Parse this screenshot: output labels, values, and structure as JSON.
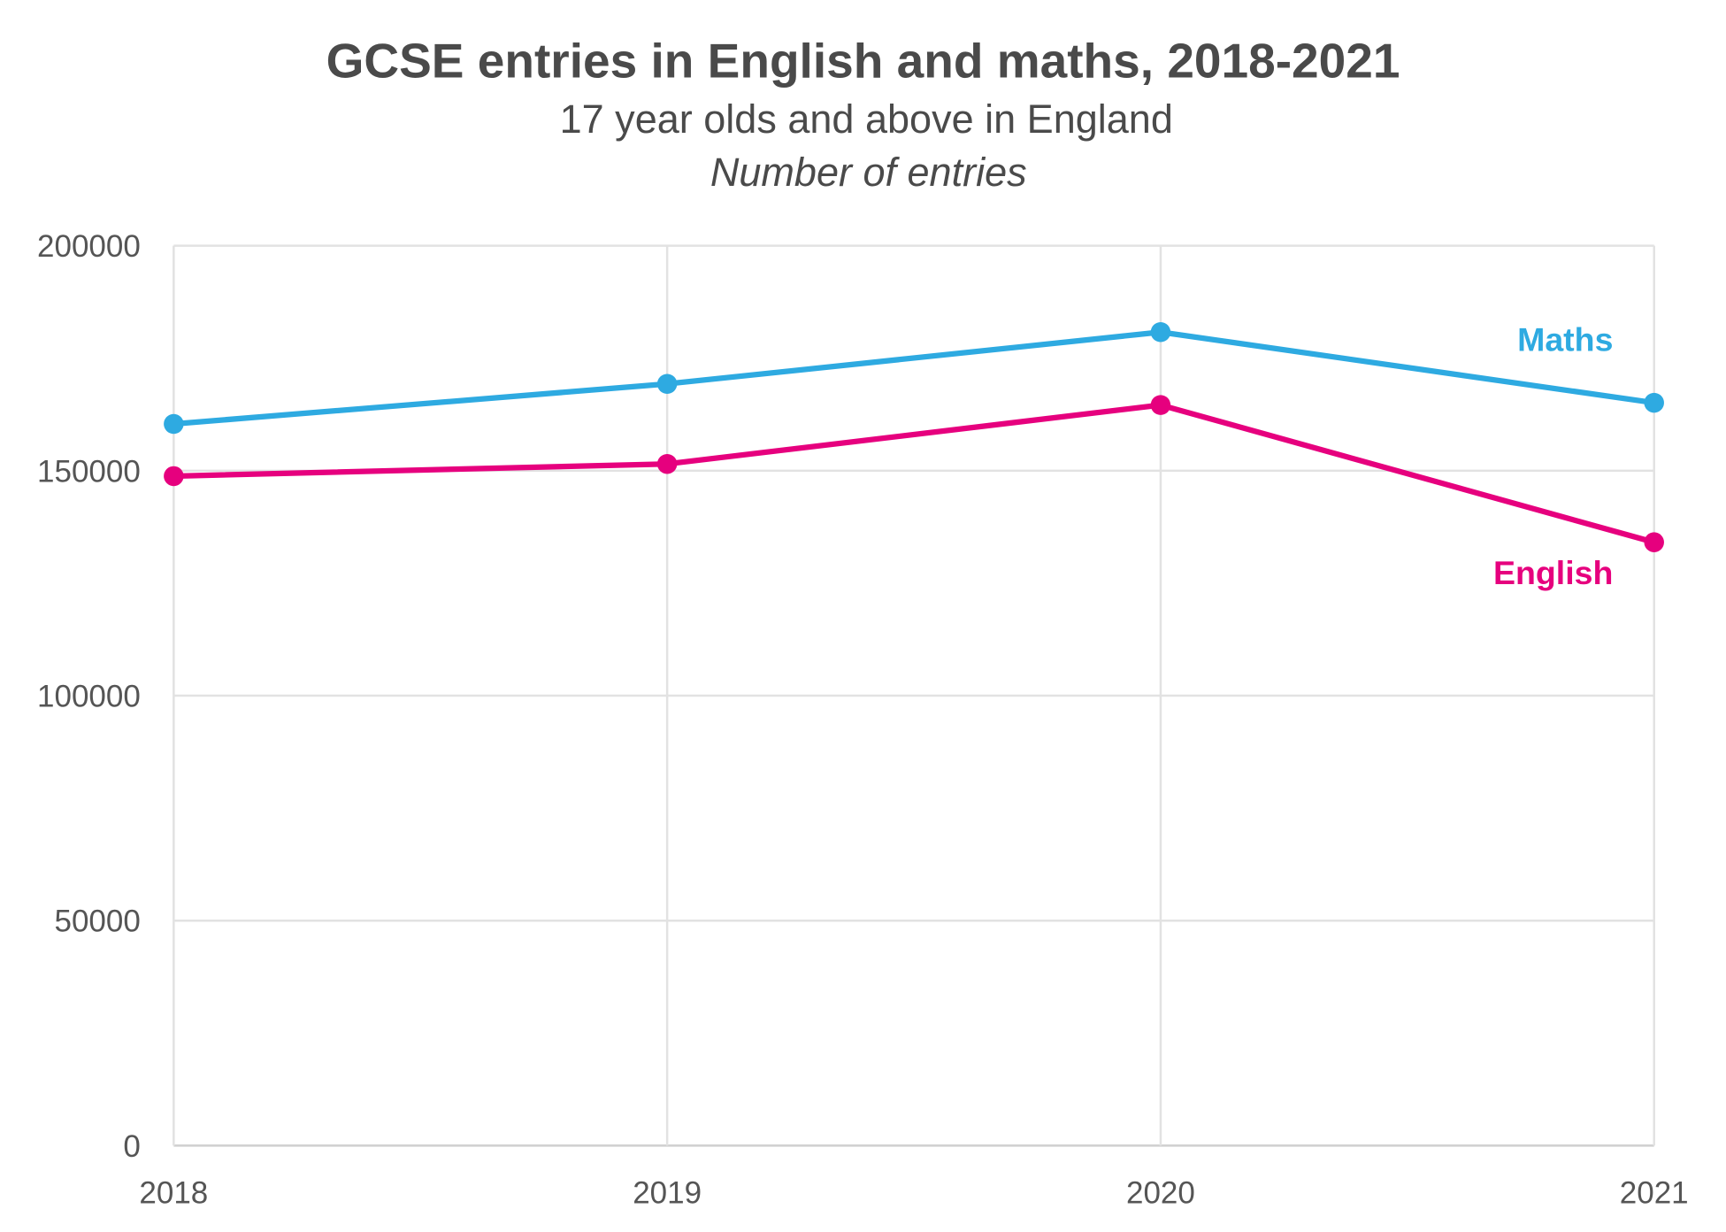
{
  "chart_data": {
    "type": "line",
    "title": "GCSE entries in English and maths, 2018-2021",
    "subtitle": "17 year olds and above in England",
    "ylabel_note": "Number of entries",
    "categories": [
      "2018",
      "2019",
      "2020",
      "2021"
    ],
    "ylim": [
      0,
      200000
    ],
    "yticks": [
      "0",
      "50000",
      "100000",
      "150000",
      "200000"
    ],
    "grid": true,
    "series": [
      {
        "name": "Maths",
        "color": "#2eaae1",
        "values": [
          160400,
          169300,
          180800,
          165100
        ]
      },
      {
        "name": "English",
        "color": "#e6007e",
        "values": [
          148800,
          151500,
          164600,
          134100
        ]
      }
    ]
  }
}
